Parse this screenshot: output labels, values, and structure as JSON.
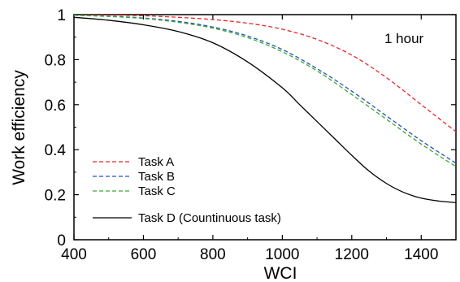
{
  "chart_data": {
    "type": "line",
    "xlabel": "WCI",
    "ylabel": "Work efficiency",
    "xlim": [
      400,
      1500
    ],
    "ylim": [
      0,
      1
    ],
    "xticks": [
      400,
      600,
      800,
      1000,
      1200,
      1400
    ],
    "yticks": [
      0,
      0.2,
      0.4,
      0.6,
      0.8,
      1
    ],
    "ytick_labels": [
      "0",
      "0.2",
      "0.4",
      "0.6",
      "0.8",
      "1"
    ],
    "grid": false,
    "legend_position": "bottom-left",
    "annotation": "1 hour",
    "series": [
      {
        "name": "Task A",
        "color": "#e8262a",
        "dash": "dashed",
        "x": [
          400,
          500,
          600,
          700,
          800,
          900,
          1000,
          1100,
          1200,
          1300,
          1400,
          1500
        ],
        "y": [
          1.0,
          0.998,
          0.995,
          0.988,
          0.978,
          0.962,
          0.935,
          0.89,
          0.82,
          0.72,
          0.6,
          0.48
        ]
      },
      {
        "name": "Task B",
        "color": "#2850b4",
        "dash": "dashed",
        "x": [
          400,
          500,
          600,
          700,
          800,
          900,
          1000,
          1100,
          1200,
          1300,
          1400,
          1500
        ],
        "y": [
          0.997,
          0.993,
          0.985,
          0.97,
          0.945,
          0.905,
          0.845,
          0.76,
          0.66,
          0.55,
          0.44,
          0.34
        ]
      },
      {
        "name": "Task C",
        "color": "#3aa63a",
        "dash": "dashed",
        "x": [
          400,
          500,
          600,
          700,
          800,
          900,
          1000,
          1100,
          1200,
          1300,
          1400,
          1500
        ],
        "y": [
          0.997,
          0.992,
          0.983,
          0.966,
          0.94,
          0.898,
          0.835,
          0.75,
          0.645,
          0.535,
          0.425,
          0.325
        ]
      },
      {
        "name": "Task D (Countinuous task)",
        "color": "#000000",
        "dash": "solid",
        "x": [
          400,
          500,
          600,
          700,
          800,
          900,
          1000,
          1050,
          1100,
          1150,
          1200,
          1250,
          1300,
          1350,
          1400,
          1450,
          1500
        ],
        "y": [
          0.988,
          0.975,
          0.955,
          0.925,
          0.875,
          0.79,
          0.675,
          0.6,
          0.525,
          0.45,
          0.375,
          0.305,
          0.25,
          0.21,
          0.185,
          0.172,
          0.165
        ]
      }
    ]
  }
}
